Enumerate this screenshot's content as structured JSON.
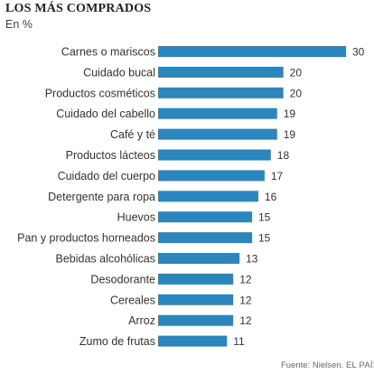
{
  "chart_data": {
    "type": "bar",
    "orientation": "horizontal",
    "title": "LOS MÁS COMPRADOS",
    "subtitle": "En %",
    "categories": [
      "Carnes o mariscos",
      "Cuidado bucal",
      "Productos cosméticos",
      "Cuidado del cabello",
      "Café y té",
      "Productos lácteos",
      "Cuidado del cuerpo",
      "Detergente para ropa",
      "Huevos",
      "Pan y productos horneados",
      "Bebidas alcohólicas",
      "Desodorante",
      "Cereales",
      "Arroz",
      "Zumo de frutas"
    ],
    "values": [
      30,
      20,
      20,
      19,
      19,
      18,
      17,
      16,
      15,
      15,
      13,
      12,
      12,
      12,
      11
    ],
    "xlim": [
      0,
      30
    ],
    "grid": false,
    "legend": "none",
    "bar_color": "#2a86bc",
    "label_color": "#333333"
  },
  "footer": {
    "source": "Fuente: Nielsen.",
    "brand": "EL PAÍS"
  }
}
